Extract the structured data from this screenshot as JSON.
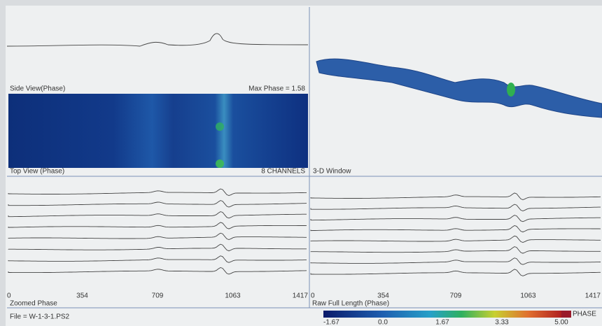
{
  "side_view": {
    "label": "Side View(Phase)",
    "max_phase": "Max Phase = 1.58"
  },
  "top_view": {
    "label": "Top View (Phase)",
    "channels": "8 CHANNELS"
  },
  "three_d": {
    "label": "3-D Window"
  },
  "zoomed": {
    "label": "Zoomed Phase",
    "axis_ticks": [
      "0",
      "354",
      "709",
      "1063",
      "1417"
    ]
  },
  "raw": {
    "label": "Raw Full Length (Phase)",
    "axis_ticks": [
      "0",
      "354",
      "709",
      "1063",
      "1417"
    ]
  },
  "file": "File = W-1-3-1.PS2",
  "colorbar": {
    "title": "PHASE",
    "ticks": [
      "-1.67",
      "0.0",
      "1.67",
      "3.33",
      "5.00"
    ]
  }
}
